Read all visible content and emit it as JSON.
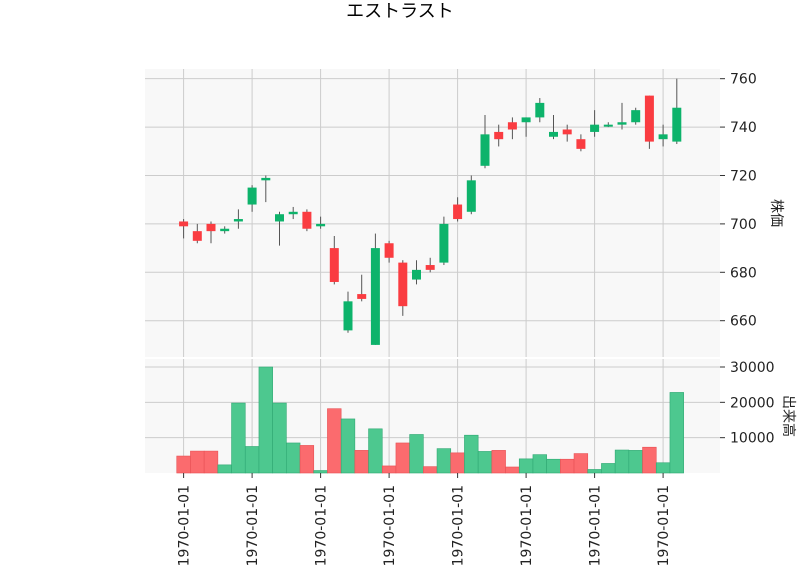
{
  "chart_data": {
    "type": "candlestick",
    "title": "エストラスト",
    "x_tick_labels": [
      "1970-01-01",
      "1970-01-01",
      "1970-01-01",
      "1970-01-01",
      "1970-01-01",
      "1970-01-01",
      "1970-01-01",
      "1970-01-01"
    ],
    "price_panel": {
      "ylabel": "株価",
      "ylim": [
        645,
        764
      ],
      "yticks": [
        660,
        680,
        700,
        720,
        740,
        760
      ],
      "grid": true
    },
    "volume_panel": {
      "ylabel": "出来高",
      "ylim": [
        0,
        30000
      ],
      "yticks": [
        10000,
        20000,
        30000
      ],
      "grid": true
    },
    "colors": {
      "up": "#0db36b",
      "down": "#fa3c41",
      "vol_up": "#4dc88f",
      "vol_down": "#fb6b6e",
      "wick": "#555555",
      "plot_bg": "#f8f8f8",
      "grid": "#cccccc"
    },
    "candles": [
      {
        "open": 701,
        "high": 702,
        "low": 694,
        "close": 699,
        "volume": 4800
      },
      {
        "open": 697,
        "high": 700,
        "low": 692,
        "close": 693,
        "volume": 6200
      },
      {
        "open": 700,
        "high": 701,
        "low": 692,
        "close": 697,
        "volume": 6200
      },
      {
        "open": 697,
        "high": 699,
        "low": 696,
        "close": 698,
        "volume": 2300
      },
      {
        "open": 701,
        "high": 706,
        "low": 698,
        "close": 702,
        "volume": 19800
      },
      {
        "open": 708,
        "high": 716,
        "low": 705,
        "close": 715,
        "volume": 7500
      },
      {
        "open": 718,
        "high": 720,
        "low": 709,
        "close": 719,
        "volume": 30000
      },
      {
        "open": 701,
        "high": 705,
        "low": 691,
        "close": 704,
        "volume": 19800
      },
      {
        "open": 704,
        "high": 707,
        "low": 702,
        "close": 705,
        "volume": 8500
      },
      {
        "open": 705,
        "high": 706,
        "low": 697,
        "close": 698,
        "volume": 7800
      },
      {
        "open": 699,
        "high": 703,
        "low": 698,
        "close": 700,
        "volume": 700
      },
      {
        "open": 690,
        "high": 695,
        "low": 675,
        "close": 676,
        "volume": 18200
      },
      {
        "open": 656,
        "high": 672,
        "low": 655,
        "close": 668,
        "volume": 15300
      },
      {
        "open": 671,
        "high": 679,
        "low": 668,
        "close": 669,
        "volume": 6400
      },
      {
        "open": 650,
        "high": 696,
        "low": 650,
        "close": 690,
        "volume": 12500
      },
      {
        "open": 692,
        "high": 693,
        "low": 684,
        "close": 686,
        "volume": 2000
      },
      {
        "open": 684,
        "high": 685,
        "low": 662,
        "close": 666,
        "volume": 8500
      },
      {
        "open": 677,
        "high": 685,
        "low": 675,
        "close": 681,
        "volume": 10900
      },
      {
        "open": 683,
        "high": 686,
        "low": 680,
        "close": 681,
        "volume": 1800
      },
      {
        "open": 684,
        "high": 703,
        "low": 683,
        "close": 700,
        "volume": 6900
      },
      {
        "open": 708,
        "high": 711,
        "low": 701,
        "close": 702,
        "volume": 5700
      },
      {
        "open": 705,
        "high": 720,
        "low": 704,
        "close": 718,
        "volume": 10700
      },
      {
        "open": 724,
        "high": 745,
        "low": 723,
        "close": 737,
        "volume": 6100
      },
      {
        "open": 738,
        "high": 741,
        "low": 732,
        "close": 735,
        "volume": 6400
      },
      {
        "open": 742,
        "high": 744,
        "low": 735,
        "close": 739,
        "volume": 1700
      },
      {
        "open": 742,
        "high": 744,
        "low": 736,
        "close": 744,
        "volume": 4000
      },
      {
        "open": 744,
        "high": 752,
        "low": 742,
        "close": 750,
        "volume": 5200
      },
      {
        "open": 736,
        "high": 745,
        "low": 735,
        "close": 738,
        "volume": 3900
      },
      {
        "open": 739,
        "high": 741,
        "low": 734,
        "close": 737,
        "volume": 3900
      },
      {
        "open": 735,
        "high": 737,
        "low": 730,
        "close": 731,
        "volume": 5500
      },
      {
        "open": 738,
        "high": 747,
        "low": 736,
        "close": 741,
        "volume": 1000
      },
      {
        "open": 741,
        "high": 742,
        "low": 740,
        "close": 741,
        "volume": 2700
      },
      {
        "open": 741,
        "high": 750,
        "low": 739,
        "close": 742,
        "volume": 6500
      },
      {
        "open": 742,
        "high": 748,
        "low": 741,
        "close": 747,
        "volume": 6400
      },
      {
        "open": 753,
        "high": 753,
        "low": 731,
        "close": 734,
        "volume": 7300
      },
      {
        "open": 735,
        "high": 741,
        "low": 732,
        "close": 737,
        "volume": 2900
      },
      {
        "open": 734,
        "high": 760,
        "low": 733,
        "close": 748,
        "volume": 22800
      }
    ]
  }
}
